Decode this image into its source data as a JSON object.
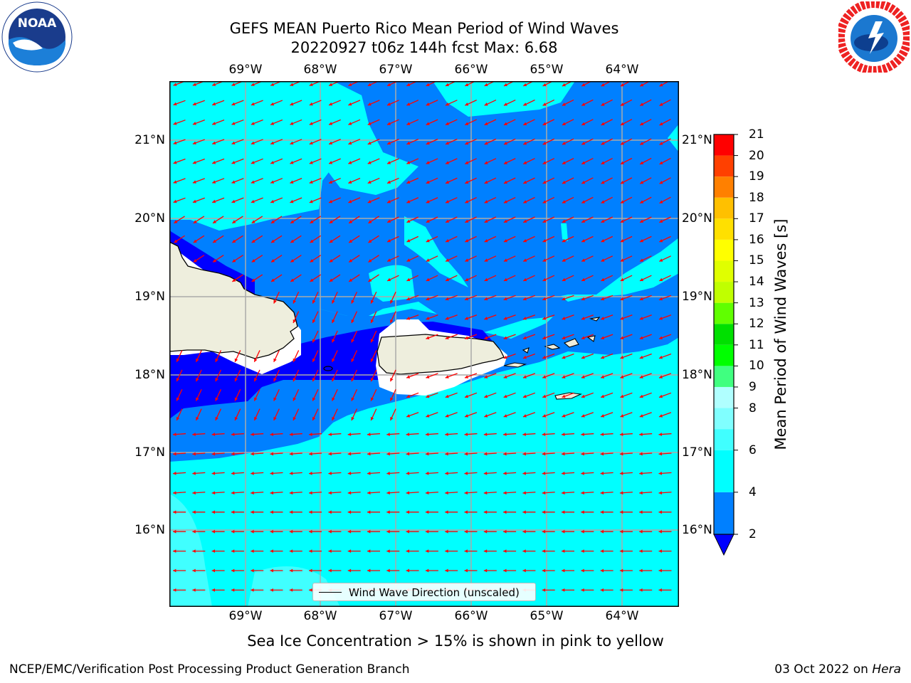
{
  "title": {
    "line1": "GEFS MEAN Puerto Rico Mean Period of Wind Waves",
    "line2": "20220927 t06z 144h fcst   Max: 6.68"
  },
  "axes": {
    "lon_labels": [
      "69°W",
      "68°W",
      "67°W",
      "66°W",
      "65°W",
      "64°W"
    ],
    "lat_labels": [
      "21°N",
      "20°N",
      "19°N",
      "18°N",
      "17°N",
      "16°N"
    ]
  },
  "legend": {
    "label": "Wind Wave Direction (unscaled)"
  },
  "colorbar": {
    "label": "Mean Period of Wind Waves [s]",
    "ticks": [
      "21",
      "20",
      "19",
      "18",
      "17",
      "16",
      "15",
      "14",
      "13",
      "12",
      "11",
      "10",
      "9",
      "8",
      "6",
      "4",
      "2"
    ],
    "levels": [
      2,
      4,
      6,
      7,
      8,
      9,
      10,
      11,
      12,
      13,
      14,
      15,
      16,
      17,
      18,
      19,
      20,
      21
    ],
    "colors": [
      "#0080ff",
      "#00ffff",
      "#40ffff",
      "#80ffff",
      "#b0ffff",
      "#40ff80",
      "#00ff00",
      "#00e000",
      "#60ff00",
      "#c0ff00",
      "#e0ff00",
      "#ffff00",
      "#ffe000",
      "#ffc000",
      "#ff8000",
      "#ff4000",
      "#ff0000"
    ],
    "under_color": "#0000ff",
    "land_color": "#eeeedd",
    "arrow_color": "#ff0000"
  },
  "notes": {
    "sea_ice": "Sea Ice Concentration > 15% is shown in pink to yellow"
  },
  "footer": {
    "left": "NCEP/EMC/Verification Post Processing Product Generation Branch",
    "right_date": "03 Oct 2022 on",
    "right_host": "Hera"
  }
}
